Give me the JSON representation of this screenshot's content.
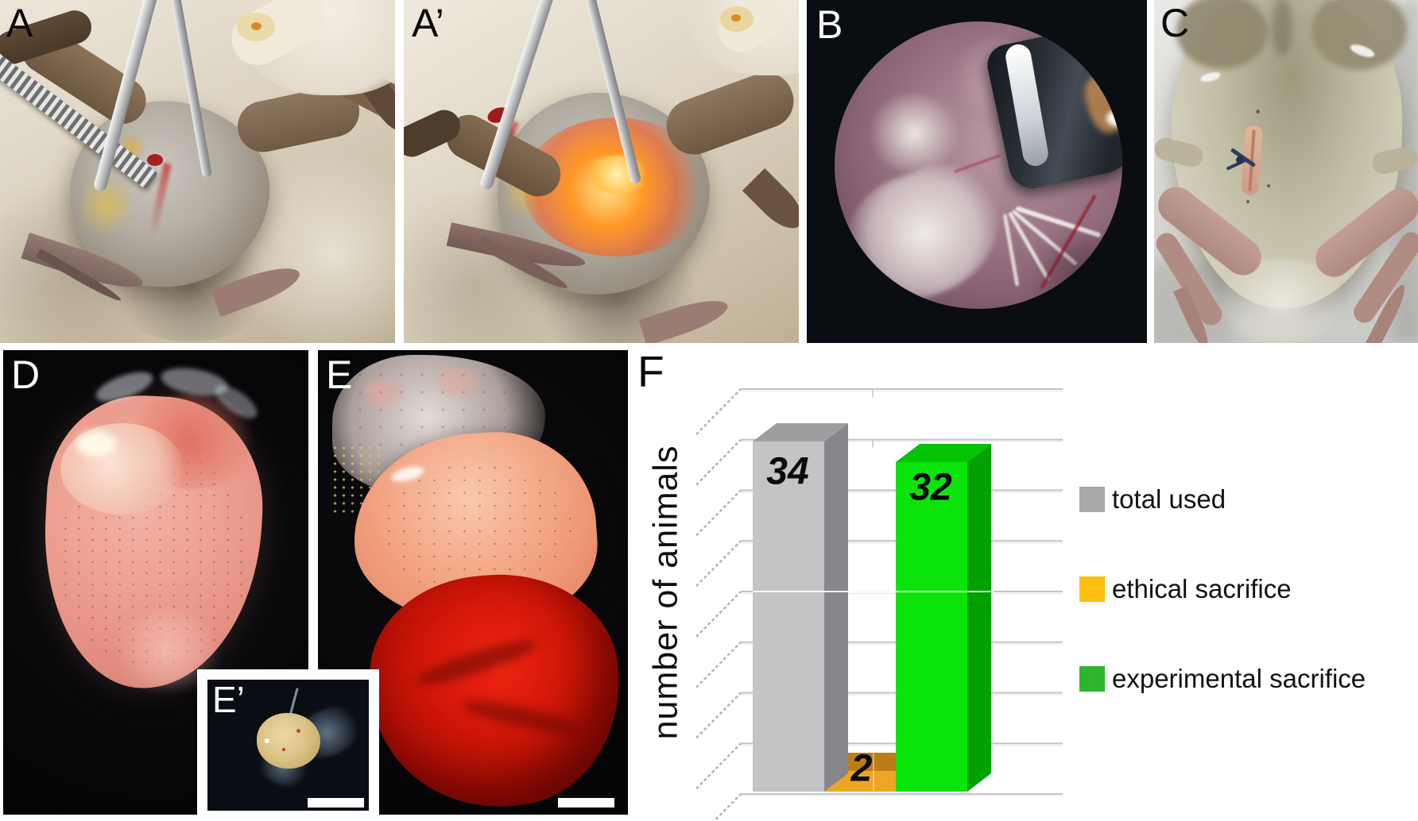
{
  "figure_labels": {
    "a": "A",
    "a_prime": "A’",
    "b": "B",
    "c": "C",
    "d": "D",
    "e": "E",
    "e_prime": "E’",
    "f": "F"
  },
  "chart_data": {
    "type": "bar",
    "style": "3d-column",
    "title": "",
    "xlabel": "",
    "ylabel": "number of animals",
    "categories": [
      "total used",
      "ethical sacrifice",
      "experimental sacrifice"
    ],
    "values": [
      34,
      2,
      32
    ],
    "bar_value_labels": [
      "34",
      "2",
      "32"
    ],
    "ylim": [
      0,
      40
    ],
    "gridline_step": 5,
    "grid": true,
    "legend_position": "right",
    "series_colors": [
      {
        "name": "total used",
        "front": "#c3c4c6",
        "side": "#85878a",
        "top": "#9d9ea0",
        "legend": "#a8a9ab"
      },
      {
        "name": "ethical sacrifice",
        "front": "#eca525",
        "side": "#c4831d",
        "top": "#bd7d16",
        "legend": "#fdbe10"
      },
      {
        "name": "experimental sacrifice",
        "front": "#0be40b",
        "side": "#02a102",
        "top": "#05c305",
        "legend": "#2eb52c"
      }
    ],
    "legend": [
      {
        "label": "total used",
        "color": "#a8a9ab"
      },
      {
        "label": "ethical sacrifice",
        "color": "#fdbe10"
      },
      {
        "label": "experimental sacrifice",
        "color": "#2eb52c"
      }
    ]
  }
}
